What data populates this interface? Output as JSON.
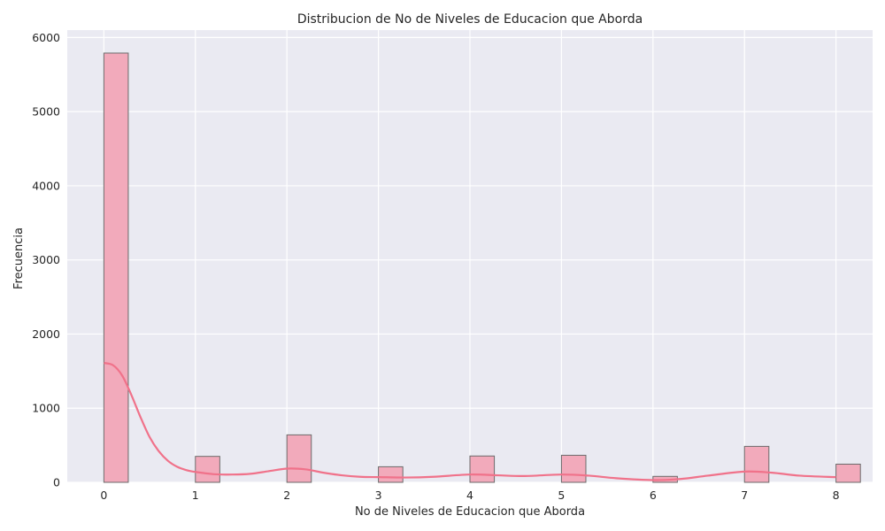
{
  "chart_data": {
    "type": "bar",
    "title": "Distribucion de No de Niveles de Educacion que Aborda",
    "xlabel": "No de Niveles de Educacion que Aborda",
    "ylabel": "Frecuencia",
    "xlim": [
      -0.4,
      8.4
    ],
    "ylim": [
      0,
      6100
    ],
    "x_ticks": [
      0,
      1,
      2,
      3,
      4,
      5,
      6,
      7,
      8
    ],
    "y_ticks": [
      0,
      1000,
      2000,
      3000,
      4000,
      5000,
      6000
    ],
    "grid": true,
    "bin_width": 0.2667,
    "bars": [
      {
        "x": 0,
        "value": 5790
      },
      {
        "x": 1,
        "value": 350
      },
      {
        "x": 2,
        "value": 640
      },
      {
        "x": 3,
        "value": 210
      },
      {
        "x": 4,
        "value": 355
      },
      {
        "x": 5,
        "value": 365
      },
      {
        "x": 6,
        "value": 80
      },
      {
        "x": 7,
        "value": 485
      },
      {
        "x": 8,
        "value": 245
      }
    ],
    "kde": {
      "x": [
        0.0,
        0.1,
        0.2,
        0.3,
        0.4,
        0.5,
        0.6,
        0.7,
        0.8,
        0.9,
        1.0,
        1.2,
        1.4,
        1.6,
        1.8,
        2.0,
        2.2,
        2.4,
        2.6,
        2.8,
        3.0,
        3.3,
        3.6,
        4.0,
        4.3,
        4.6,
        5.0,
        5.3,
        5.6,
        6.0,
        6.3,
        6.6,
        7.0,
        7.3,
        7.6,
        8.0
      ],
      "values": [
        1610,
        1580,
        1440,
        1180,
        880,
        610,
        420,
        290,
        210,
        165,
        140,
        110,
        105,
        115,
        150,
        185,
        175,
        130,
        95,
        75,
        70,
        65,
        75,
        105,
        95,
        85,
        105,
        90,
        55,
        30,
        45,
        90,
        145,
        130,
        90,
        70
      ]
    },
    "colors": {
      "bar_fill": "#f2aabb",
      "bar_edge": "#6b6b6b",
      "kde_line": "#f0728a",
      "plot_bg": "#eaeaf2",
      "grid": "#ffffff"
    }
  }
}
